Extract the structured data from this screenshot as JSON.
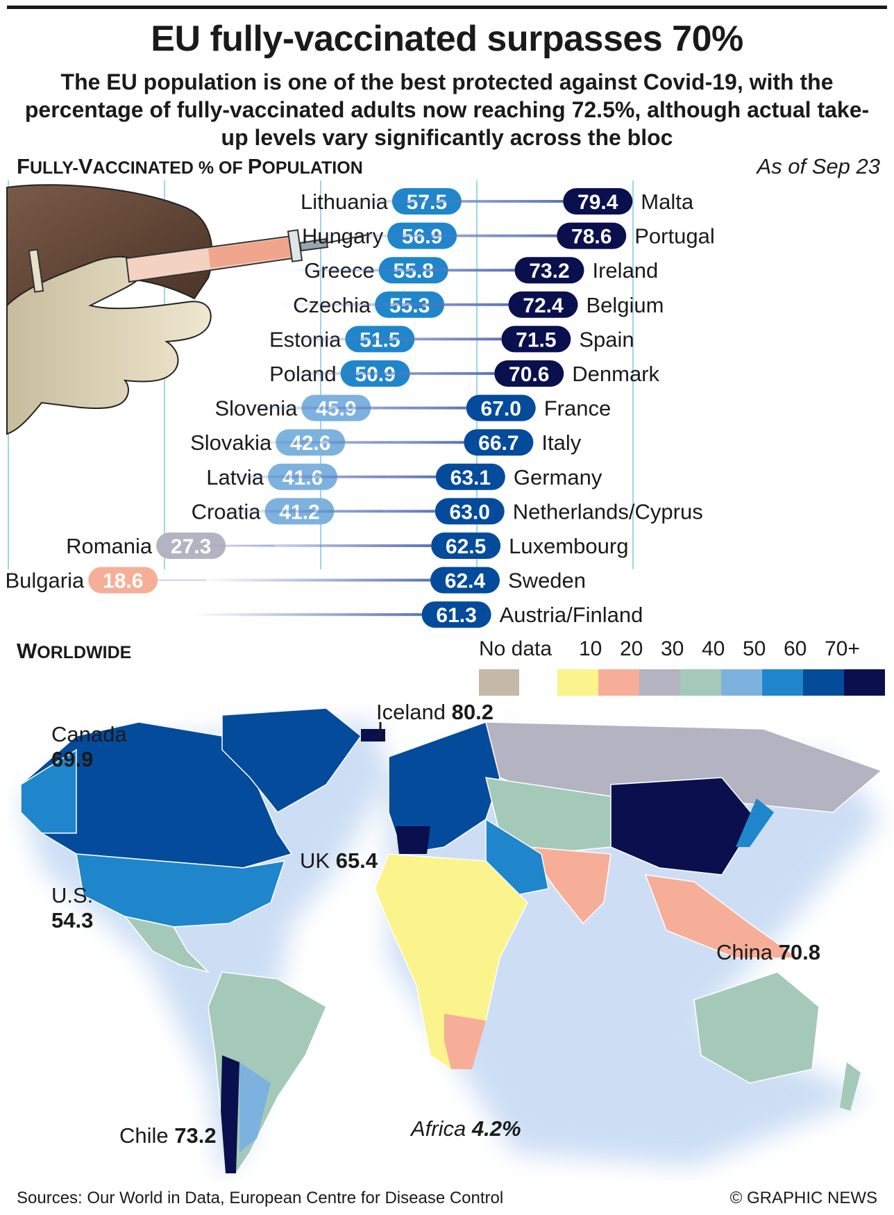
{
  "title": "EU fully-vaccinated surpasses 70%",
  "subtitle": "The EU population is one of the best protected against Covid-19, with the percentage of fully-vaccinated adults now reaching 72.5%, although actual take-up levels vary significantly across the bloc",
  "section_label": {
    "first": "F",
    "rest1": "ULLY-",
    "v": "V",
    "rest2": "ACCINATED % OF ",
    "p": "P",
    "rest3": "OPULATION"
  },
  "as_of": "As of Sep 23",
  "worldwide_label": {
    "first": "W",
    "rest": "ORLDWIDE"
  },
  "legend": {
    "no_data": "No data",
    "no_data_color": "#c4b8a6",
    "bins": [
      {
        "label": "10",
        "color": "#fbf38c"
      },
      {
        "label": "20",
        "color": "#f6ae98"
      },
      {
        "label": "30",
        "color": "#b3b3c1"
      },
      {
        "label": "40",
        "color": "#a5c9b8"
      },
      {
        "label": "50",
        "color": "#7db2df"
      },
      {
        "label": "60",
        "color": "#1f86cb"
      },
      {
        "label": "70+",
        "color": "#054b9c"
      },
      {
        "label": "",
        "color": "#0a0f4e"
      }
    ]
  },
  "chart_data": {
    "type": "bar",
    "title": "EU fully-vaccinated surpasses 70%",
    "left_series": [
      {
        "country": "Lithuania",
        "value": 57.5
      },
      {
        "country": "Hungary",
        "value": 56.9
      },
      {
        "country": "Greece",
        "value": 55.8
      },
      {
        "country": "Czechia",
        "value": 55.3
      },
      {
        "country": "Estonia",
        "value": 51.5
      },
      {
        "country": "Poland",
        "value": 50.9
      },
      {
        "country": "Slovenia",
        "value": 45.9
      },
      {
        "country": "Slovakia",
        "value": 42.6
      },
      {
        "country": "Latvia",
        "value": 41.6
      },
      {
        "country": "Croatia",
        "value": 41.2
      },
      {
        "country": "Romania",
        "value": 27.3
      },
      {
        "country": "Bulgaria",
        "value": 18.6
      }
    ],
    "right_series": [
      {
        "country": "Malta",
        "value": 79.4
      },
      {
        "country": "Portugal",
        "value": 78.6
      },
      {
        "country": "Ireland",
        "value": 73.2
      },
      {
        "country": "Belgium",
        "value": 72.4
      },
      {
        "country": "Spain",
        "value": 71.5
      },
      {
        "country": "Denmark",
        "value": 70.6
      },
      {
        "country": "France",
        "value": 67.0
      },
      {
        "country": "Italy",
        "value": 66.7
      },
      {
        "country": "Germany",
        "value": 63.1
      },
      {
        "country": "Netherlands/Cyprus",
        "value": 63.0
      },
      {
        "country": "Luxembourg",
        "value": 62.5
      },
      {
        "country": "Sweden",
        "value": 62.4
      },
      {
        "country": "Austria/Finland",
        "value": 61.3
      }
    ],
    "xlim": [
      0,
      100
    ]
  },
  "map_labels": {
    "iceland": {
      "name": "Iceland",
      "value": "80.2"
    },
    "canada": {
      "name": "Canada",
      "value": "69.9"
    },
    "uk": {
      "name": "UK",
      "value": "65.4"
    },
    "us": {
      "name": "U.S.",
      "value": "54.3"
    },
    "china": {
      "name": "China",
      "value": "70.8"
    },
    "chile": {
      "name": "Chile",
      "value": "73.2"
    },
    "africa": {
      "name": "Africa",
      "value": "4.2%"
    }
  },
  "sources": "Sources: Our World in Data, European Centre for Disease Control",
  "credit": "© GRAPHIC NEWS"
}
